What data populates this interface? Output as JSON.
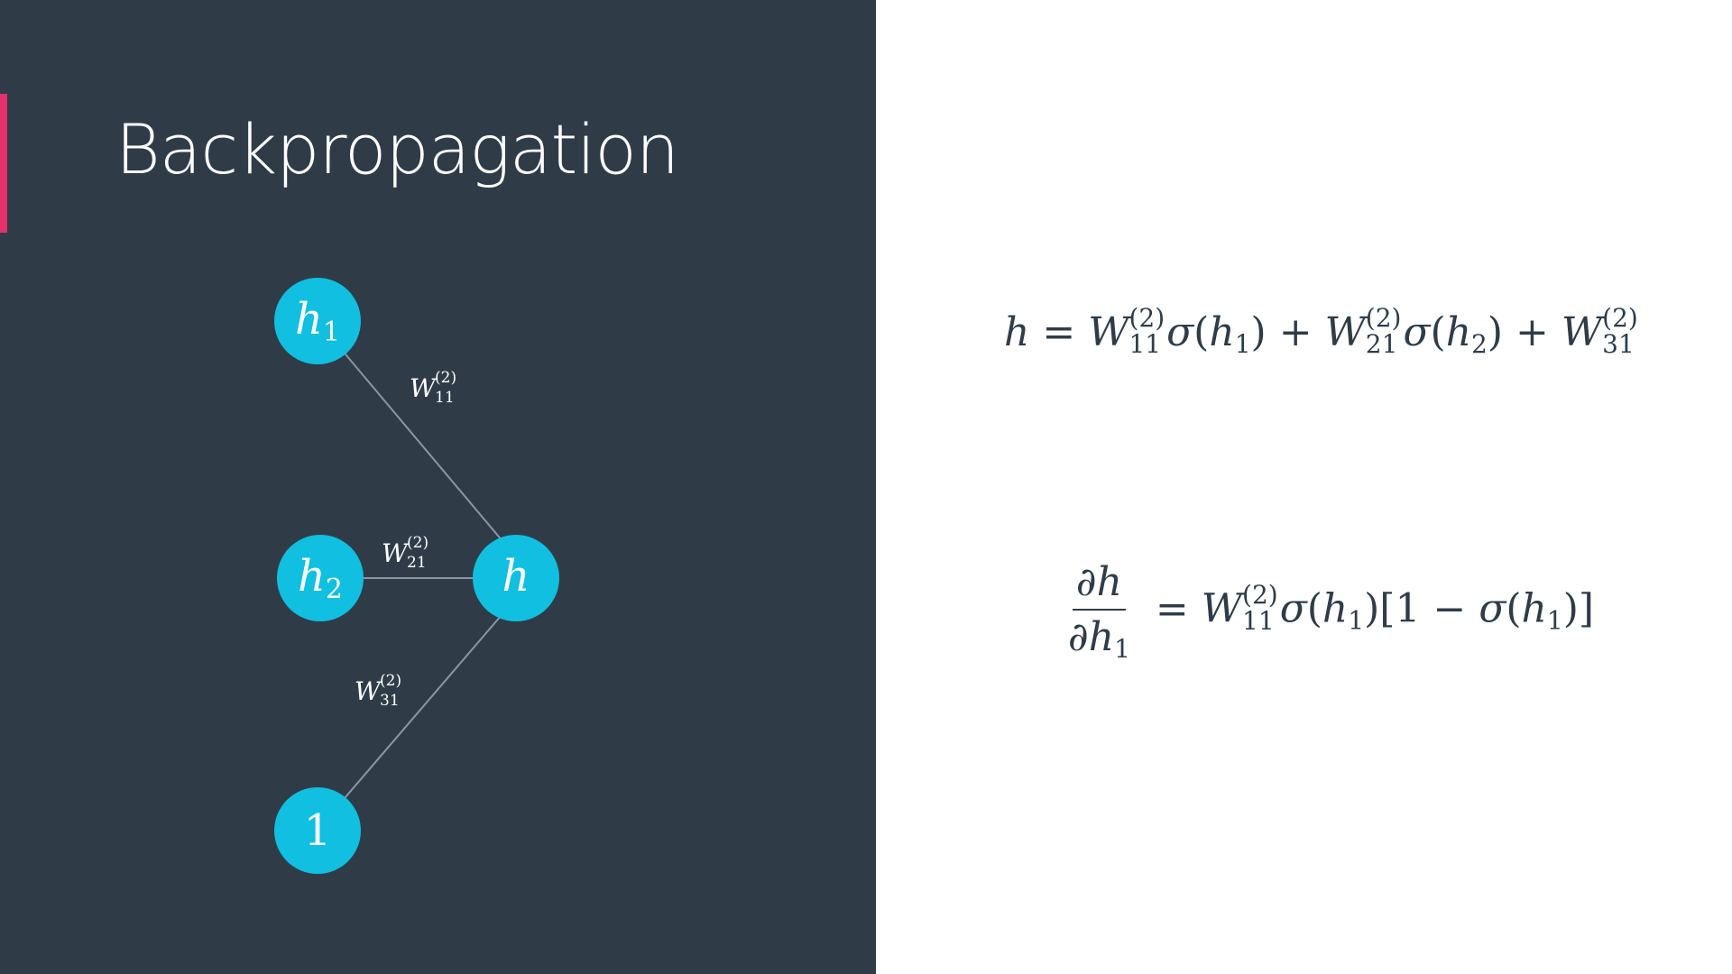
{
  "slide": {
    "title": "Backpropagation",
    "colors": {
      "panel": "#2f3c48",
      "accent": "#e6306c",
      "node": "#11bfe0",
      "edge": "#8a97a4"
    }
  },
  "diagram": {
    "nodes": [
      {
        "id": "h1",
        "base": "h",
        "sub": "1"
      },
      {
        "id": "h2",
        "base": "h",
        "sub": "2"
      },
      {
        "id": "h",
        "base": "h",
        "sub": ""
      },
      {
        "id": "bias",
        "base": "1",
        "sub": ""
      }
    ],
    "edges": [
      {
        "from": "h1",
        "to": "h",
        "weight": "W",
        "sup": "(2)",
        "sub": "11"
      },
      {
        "from": "h2",
        "to": "h",
        "weight": "W",
        "sup": "(2)",
        "sub": "21"
      },
      {
        "from": "bias",
        "to": "h",
        "weight": "W",
        "sup": "(2)",
        "sub": "31"
      }
    ]
  },
  "equations": {
    "eq1": {
      "lhs": "h",
      "equals": "=",
      "t1": {
        "w": "W",
        "sup": "(2)",
        "sub": "11",
        "fn": "σ",
        "arg": "h",
        "argsub": "1"
      },
      "plus1": "+",
      "t2": {
        "w": "W",
        "sup": "(2)",
        "sub": "21",
        "fn": "σ",
        "arg": "h",
        "argsub": "2"
      },
      "plus2": "+",
      "t3": {
        "w": "W",
        "sup": "(2)",
        "sub": "31"
      }
    },
    "eq2": {
      "num": "∂h",
      "den": "∂h",
      "densub": "1",
      "equals": "=",
      "w": "W",
      "sup": "(2)",
      "sub": "11",
      "fn": "σ",
      "arg": "h",
      "argsub": "1",
      "bracket_open": "[",
      "one": "1",
      "minus": "−",
      "fn2": "σ",
      "arg2": "h",
      "argsub2": "1",
      "bracket_close": "]"
    }
  }
}
